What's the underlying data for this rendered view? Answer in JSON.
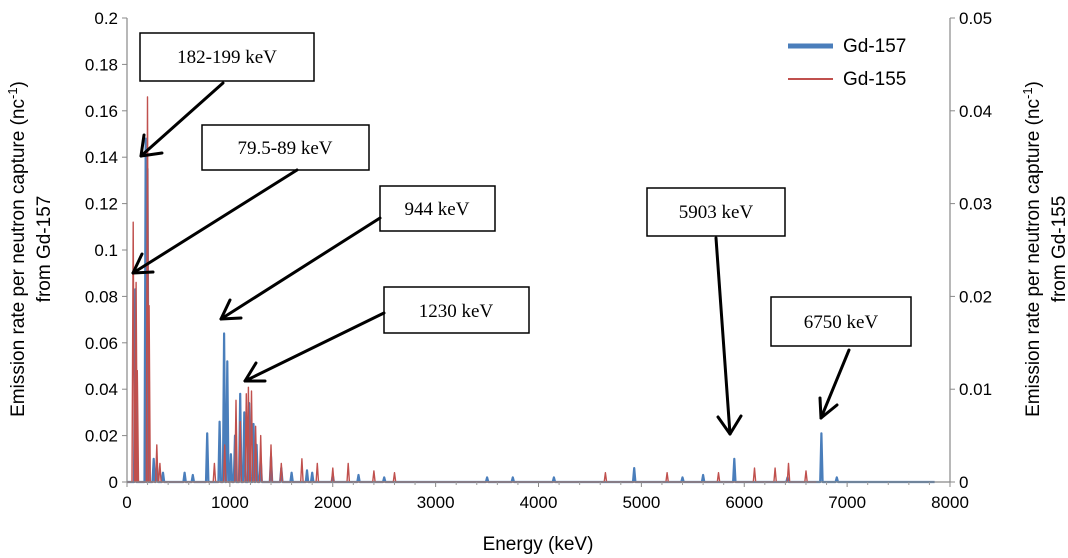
{
  "chart_data": {
    "type": "line",
    "xlabel": "Energy (keV)",
    "ylabel_left_line1": "Emission rate per neutron capture (nc",
    "ylabel_left_sup": "-1",
    "ylabel_left_close": ")",
    "ylabel_left_line2": "from Gd-157",
    "ylabel_right_line1": "Emission rate per neutron capture (nc",
    "ylabel_right_sup": "-1",
    "ylabel_right_close": ")",
    "ylabel_right_line2": "from Gd-155",
    "xlim": [
      0,
      8000
    ],
    "ylim_left": [
      0,
      0.2
    ],
    "ylim_right": [
      0,
      0.05
    ],
    "x_ticks": [
      "0",
      "1000",
      "2000",
      "3000",
      "4000",
      "5000",
      "6000",
      "7000",
      "8000"
    ],
    "y_left_ticks": [
      "0",
      "0.02",
      "0.04",
      "0.06",
      "0.08",
      "0.1",
      "0.12",
      "0.14",
      "0.16",
      "0.18",
      "0.2"
    ],
    "y_right_ticks": [
      "0",
      "0.01",
      "0.02",
      "0.03",
      "0.04",
      "0.05"
    ],
    "legend_position": "top-right",
    "series": [
      {
        "name": "Gd-157",
        "axis": "left",
        "color": "#4a7ebb",
        "peaks": [
          [
            80,
            0.083
          ],
          [
            182,
            0.148
          ],
          [
            199,
            0.135
          ],
          [
            260,
            0.01
          ],
          [
            290,
            0.008
          ],
          [
            350,
            0.004
          ],
          [
            560,
            0.004
          ],
          [
            640,
            0.003
          ],
          [
            780,
            0.021
          ],
          [
            900,
            0.026
          ],
          [
            944,
            0.064
          ],
          [
            975,
            0.052
          ],
          [
            1010,
            0.012
          ],
          [
            1050,
            0.02
          ],
          [
            1100,
            0.038
          ],
          [
            1140,
            0.03
          ],
          [
            1187,
            0.034
          ],
          [
            1230,
            0.025
          ],
          [
            1260,
            0.016
          ],
          [
            1300,
            0.01
          ],
          [
            1400,
            0.011
          ],
          [
            1500,
            0.006
          ],
          [
            1600,
            0.004
          ],
          [
            1750,
            0.005
          ],
          [
            1800,
            0.004
          ],
          [
            2000,
            0.003
          ],
          [
            2250,
            0.003
          ],
          [
            2500,
            0.002
          ],
          [
            3500,
            0.002
          ],
          [
            3750,
            0.002
          ],
          [
            4150,
            0.002
          ],
          [
            4930,
            0.006
          ],
          [
            5400,
            0.002
          ],
          [
            5600,
            0.003
          ],
          [
            5903,
            0.01
          ],
          [
            6420,
            0.002
          ],
          [
            6750,
            0.021
          ],
          [
            6900,
            0.002
          ]
        ]
      },
      {
        "name": "Gd-155",
        "axis": "right",
        "color": "#c0504d",
        "peaks": [
          [
            60,
            0.028
          ],
          [
            88,
            0.0215
          ],
          [
            100,
            0.012
          ],
          [
            199,
            0.0415
          ],
          [
            215,
            0.019
          ],
          [
            290,
            0.004
          ],
          [
            320,
            0.002
          ],
          [
            850,
            0.002
          ],
          [
            950,
            0.004
          ],
          [
            1060,
            0.0088
          ],
          [
            1100,
            0.0065
          ],
          [
            1160,
            0.0095
          ],
          [
            1180,
            0.0102
          ],
          [
            1210,
            0.0098
          ],
          [
            1250,
            0.006
          ],
          [
            1300,
            0.005
          ],
          [
            1400,
            0.004
          ],
          [
            1500,
            0.002
          ],
          [
            1700,
            0.0025
          ],
          [
            1850,
            0.002
          ],
          [
            2000,
            0.0015
          ],
          [
            2150,
            0.002
          ],
          [
            2400,
            0.0012
          ],
          [
            2600,
            0.001
          ],
          [
            4650,
            0.001
          ],
          [
            5250,
            0.001
          ],
          [
            5750,
            0.001
          ],
          [
            6100,
            0.0015
          ],
          [
            6300,
            0.0015
          ],
          [
            6430,
            0.002
          ],
          [
            6600,
            0.0012
          ]
        ]
      }
    ],
    "annotations": [
      {
        "text": "182-199 keV"
      },
      {
        "text": "79.5-89 keV"
      },
      {
        "text": "944 keV"
      },
      {
        "text": "1230 keV"
      },
      {
        "text": "5903 keV"
      },
      {
        "text": "6750 keV"
      }
    ]
  }
}
